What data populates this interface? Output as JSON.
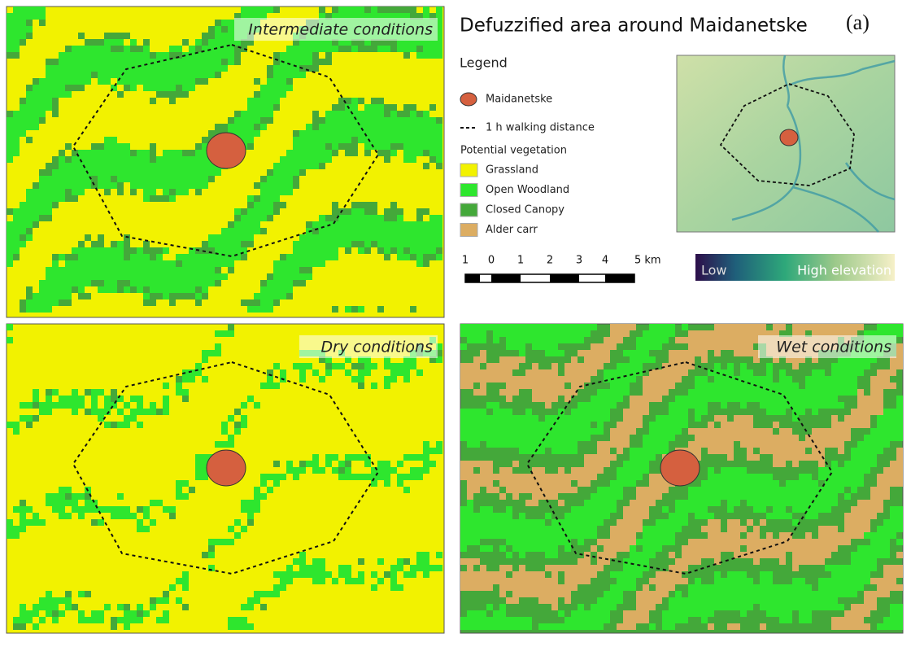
{
  "title": "Defuzzified area around Maidanetske",
  "panel_label": "(a)",
  "panels": [
    {
      "label": "Intermediate conditions"
    },
    {
      "label": "Dry conditions"
    },
    {
      "label": "Wet conditions"
    }
  ],
  "legend": {
    "title": "Legend",
    "site": "Maidanetske",
    "walking": "1 h walking distance",
    "vegetation_title": "Potential vegetation",
    "classes": [
      {
        "name": "Grassland",
        "color": "#f2f200"
      },
      {
        "name": "Open Woodland",
        "color": "#2ee62e"
      },
      {
        "name": "Closed Canopy",
        "color": "#44a83a"
      },
      {
        "name": "Alder carr",
        "color": "#dcad62"
      }
    ]
  },
  "scale_bar": {
    "labels": [
      "1",
      "0",
      "1",
      "2",
      "3",
      "4",
      "5 km"
    ]
  },
  "elevation": {
    "low": "Low",
    "high": "High elevation"
  }
}
